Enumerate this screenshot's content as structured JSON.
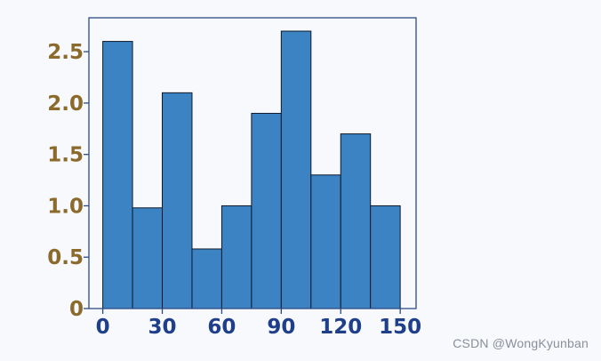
{
  "chart_data": {
    "type": "bar",
    "bins": [
      {
        "x0": 0,
        "x1": 15,
        "value": 2.6
      },
      {
        "x0": 15,
        "x1": 30,
        "value": 0.98
      },
      {
        "x0": 30,
        "x1": 45,
        "value": 2.1
      },
      {
        "x0": 45,
        "x1": 60,
        "value": 0.58
      },
      {
        "x0": 60,
        "x1": 75,
        "value": 1.0
      },
      {
        "x0": 75,
        "x1": 90,
        "value": 1.9
      },
      {
        "x0": 90,
        "x1": 105,
        "value": 2.7
      },
      {
        "x0": 105,
        "x1": 120,
        "value": 1.3
      },
      {
        "x0": 120,
        "x1": 135,
        "value": 1.7
      },
      {
        "x0": 135,
        "x1": 150,
        "value": 1.0
      }
    ],
    "xlim": [
      -7,
      158
    ],
    "ylim": [
      0,
      2.83
    ],
    "xticks": [
      0,
      30,
      60,
      90,
      120,
      150
    ],
    "yticks": [
      0,
      0.5,
      1.0,
      1.5,
      2.0,
      2.5
    ],
    "xtick_labels": [
      "0",
      "30",
      "60",
      "90",
      "120",
      "150"
    ],
    "ytick_labels": [
      "0",
      "0.5",
      "1.0",
      "1.5",
      "2.0",
      "2.5"
    ],
    "colors": {
      "bar_fill": "#3b83c3",
      "bar_edge": "#0e1a2b",
      "frame": "#2e4a86",
      "xtick_text": "#1f3f8a",
      "ytick_text": "#8b6a2c"
    },
    "grid": false,
    "legend": "none"
  },
  "watermark": "CSDN @WongKyunban"
}
